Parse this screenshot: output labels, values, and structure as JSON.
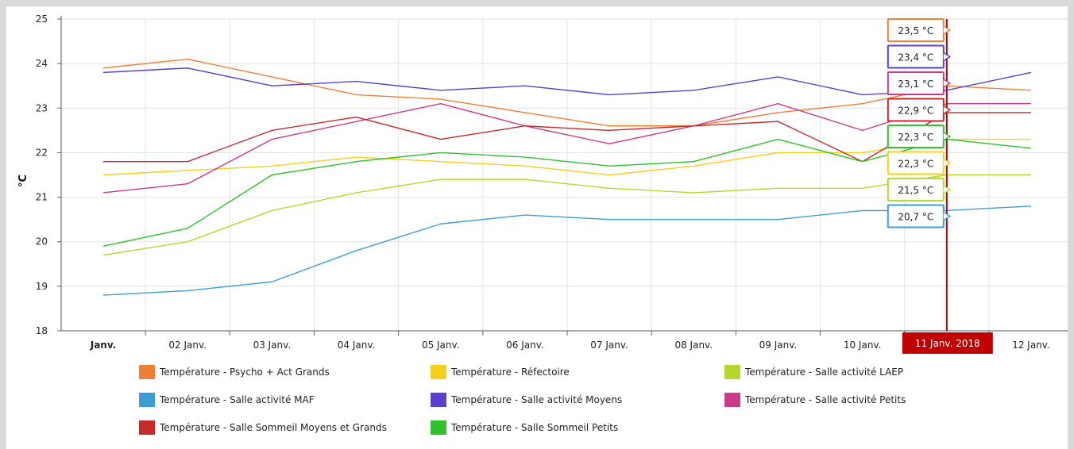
{
  "chart_data": {
    "type": "line",
    "ylabel": "°C",
    "xlabel": "",
    "ylim": [
      18,
      25
    ],
    "y_ticks": [
      "18",
      "19",
      "20",
      "21",
      "22",
      "23",
      "24",
      "25"
    ],
    "categories": [
      "Janv.",
      "02 Janv.",
      "03 Janv.",
      "04 Janv.",
      "05 Janv.",
      "06 Janv.",
      "07 Janv.",
      "08 Janv.",
      "09 Janv.",
      "10 Janv.",
      "11 Janv. 2018",
      "12 Janv."
    ],
    "highlighted_category": "11 Janv. 2018",
    "grid": true,
    "legend_position": "bottom",
    "series": [
      {
        "name": "Température - Psycho + Act Grands",
        "color": "#f07f35",
        "values": [
          23.9,
          24.1,
          23.7,
          23.3,
          23.2,
          22.9,
          22.6,
          22.6,
          22.9,
          23.1,
          23.5,
          23.4
        ],
        "tooltip": "23,5 °C"
      },
      {
        "name": "Température - Réfectoire",
        "color": "#f5cf1a",
        "values": [
          21.5,
          21.6,
          21.7,
          21.9,
          21.8,
          21.7,
          21.5,
          21.7,
          22.0,
          22.0,
          22.3,
          22.3
        ],
        "tooltip": "22,3 °C"
      },
      {
        "name": "Température - Salle activité LAEP",
        "color": "#b3d92e",
        "values": [
          19.7,
          20.0,
          20.7,
          21.1,
          21.4,
          21.4,
          21.2,
          21.1,
          21.2,
          21.2,
          21.5,
          21.5
        ],
        "tooltip": "21,5 °C"
      },
      {
        "name": "Température - Salle activité MAF",
        "color": "#3d9ed6",
        "values": [
          18.8,
          18.9,
          19.1,
          19.8,
          20.4,
          20.6,
          20.5,
          20.5,
          20.5,
          20.7,
          20.7,
          20.8
        ],
        "tooltip": "20,7 °C"
      },
      {
        "name": "Température - Salle activité Moyens",
        "color": "#5b3fd0",
        "values": [
          23.8,
          23.9,
          23.5,
          23.6,
          23.4,
          23.5,
          23.3,
          23.4,
          23.7,
          23.3,
          23.4,
          23.8
        ],
        "tooltip": "23,4 °C"
      },
      {
        "name": "Température - Salle activité Petits",
        "color": "#c93a8c",
        "values": [
          21.1,
          21.3,
          22.3,
          22.7,
          23.1,
          22.6,
          22.2,
          22.6,
          23.1,
          22.5,
          23.1,
          23.1
        ],
        "tooltip": "23,1 °C"
      },
      {
        "name": "Température - Salle Sommeil Moyens et Grands",
        "color": "#c72a2a",
        "values": [
          21.8,
          21.8,
          22.5,
          22.8,
          22.3,
          22.6,
          22.5,
          22.6,
          22.7,
          21.8,
          22.9,
          22.9
        ],
        "tooltip": "22,9 °C"
      },
      {
        "name": "Température - Salle Sommeil Petits",
        "color": "#2ec22e",
        "values": [
          19.9,
          20.3,
          21.5,
          21.8,
          22.0,
          21.9,
          21.7,
          21.8,
          22.3,
          21.8,
          22.3,
          22.1
        ],
        "tooltip": "22,3 °C"
      }
    ]
  }
}
